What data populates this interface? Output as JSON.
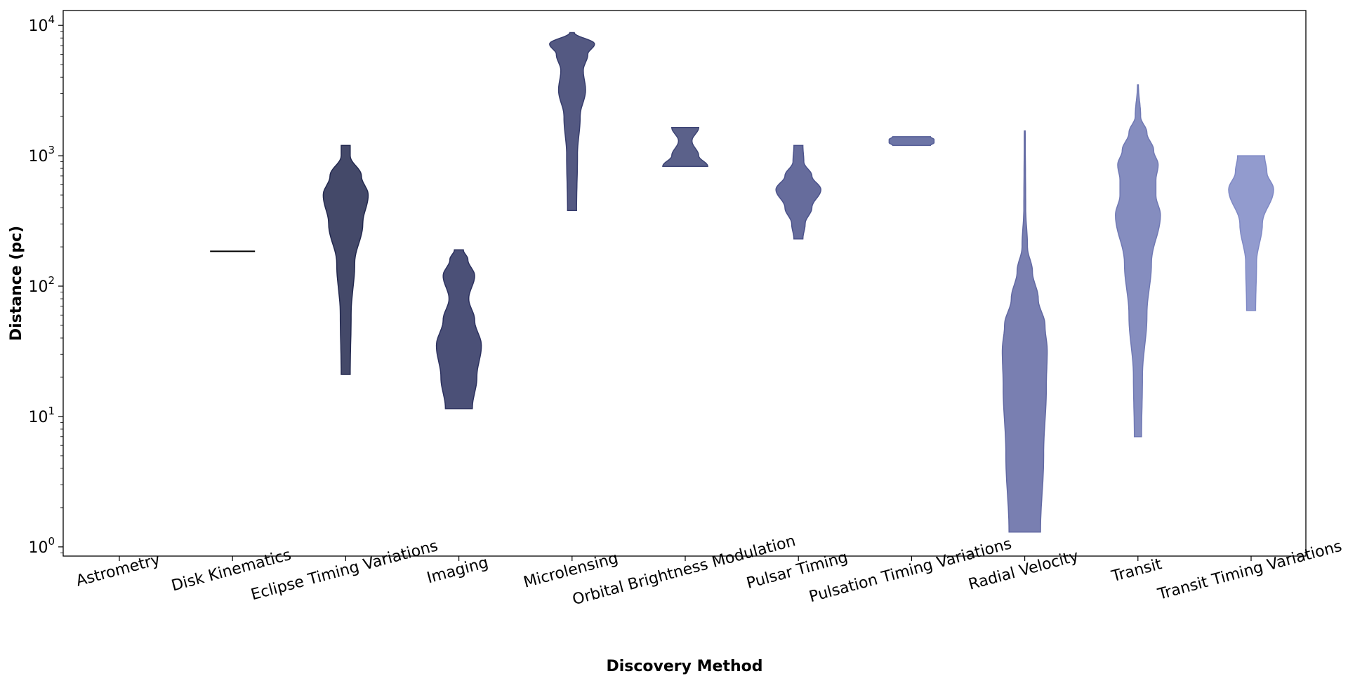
{
  "chart_data": {
    "type": "violin",
    "xlabel": "Discovery Method",
    "ylabel": "Distance (pc)",
    "yscale": "log",
    "ylim": [
      0.85,
      13000
    ],
    "grid": false,
    "legend": "none",
    "y_ticks": [
      {
        "value": 1,
        "base": "10",
        "exp": "0"
      },
      {
        "value": 10,
        "base": "10",
        "exp": "1"
      },
      {
        "value": 100,
        "base": "10",
        "exp": "2"
      },
      {
        "value": 1000,
        "base": "10",
        "exp": "3"
      },
      {
        "value": 10000,
        "base": "10",
        "exp": "4"
      }
    ],
    "categories": [
      "Astrometry",
      "Disk Kinematics",
      "Eclipse Timing Variations",
      "Imaging",
      "Microlensing",
      "Orbital Brightness Modulation",
      "Pulsar Timing",
      "Pulsation Timing Variations",
      "Radial Velocity",
      "Transit",
      "Transit Timing Variations"
    ],
    "violins": [
      {
        "category": "Astrometry",
        "color": null,
        "profile": []
      },
      {
        "category": "Disk Kinematics",
        "color": "#000000",
        "profile": [
          [
            185,
            0.5
          ]
        ]
      },
      {
        "category": "Eclipse Timing Variations",
        "color": "#23294f",
        "profile": [
          [
            21,
            0.1
          ],
          [
            60,
            0.12
          ],
          [
            150,
            0.2
          ],
          [
            300,
            0.38
          ],
          [
            500,
            0.5
          ],
          [
            700,
            0.35
          ],
          [
            1000,
            0.1
          ],
          [
            1200,
            0.1
          ]
        ]
      },
      {
        "category": "Imaging",
        "color": "#2c315f",
        "profile": [
          [
            11.5,
            0.3
          ],
          [
            20,
            0.4
          ],
          [
            35,
            0.5
          ],
          [
            55,
            0.35
          ],
          [
            80,
            0.22
          ],
          [
            120,
            0.35
          ],
          [
            160,
            0.2
          ],
          [
            190,
            0.1
          ]
        ]
      },
      {
        "category": "Microlensing",
        "color": "#363c6c",
        "profile": [
          [
            380,
            0.1
          ],
          [
            1000,
            0.12
          ],
          [
            2000,
            0.18
          ],
          [
            3200,
            0.3
          ],
          [
            4500,
            0.25
          ],
          [
            6000,
            0.35
          ],
          [
            7200,
            0.5
          ],
          [
            8800,
            0.05
          ]
        ]
      },
      {
        "category": "Orbital Brightness Modulation",
        "color": "#3e4575",
        "profile": [
          [
            830,
            0.5
          ],
          [
            1000,
            0.3
          ],
          [
            1300,
            0.15
          ],
          [
            1650,
            0.3
          ]
        ]
      },
      {
        "category": "Pulsar Timing",
        "color": "#4b528b",
        "profile": [
          [
            230,
            0.1
          ],
          [
            300,
            0.15
          ],
          [
            400,
            0.3
          ],
          [
            550,
            0.5
          ],
          [
            700,
            0.3
          ],
          [
            900,
            0.12
          ],
          [
            1200,
            0.1
          ]
        ]
      },
      {
        "category": "Pulsation Timing Variations",
        "color": "#545d96",
        "profile": [
          [
            1200,
            0.42
          ],
          [
            1260,
            0.5
          ],
          [
            1330,
            0.5
          ],
          [
            1400,
            0.42
          ]
        ]
      },
      {
        "category": "Radial Velocity",
        "color": "#6269a3",
        "profile": [
          [
            1.3,
            0.35
          ],
          [
            5,
            0.42
          ],
          [
            17,
            0.48
          ],
          [
            32,
            0.5
          ],
          [
            50,
            0.45
          ],
          [
            80,
            0.3
          ],
          [
            130,
            0.17
          ],
          [
            200,
            0.06
          ],
          [
            400,
            0.02
          ],
          [
            1550,
            0.01
          ]
        ]
      },
      {
        "category": "Transit",
        "color": "#7079b4",
        "profile": [
          [
            7,
            0.08
          ],
          [
            20,
            0.1
          ],
          [
            60,
            0.2
          ],
          [
            150,
            0.3
          ],
          [
            350,
            0.5
          ],
          [
            500,
            0.4
          ],
          [
            650,
            0.4
          ],
          [
            850,
            0.45
          ],
          [
            1100,
            0.35
          ],
          [
            1500,
            0.2
          ],
          [
            2000,
            0.06
          ],
          [
            3500,
            0.01
          ]
        ]
      },
      {
        "category": "Transit Timing Variations",
        "color": "#7f89c5",
        "profile": [
          [
            65,
            0.1
          ],
          [
            150,
            0.12
          ],
          [
            300,
            0.25
          ],
          [
            550,
            0.5
          ],
          [
            750,
            0.35
          ],
          [
            1000,
            0.3
          ]
        ]
      }
    ]
  }
}
